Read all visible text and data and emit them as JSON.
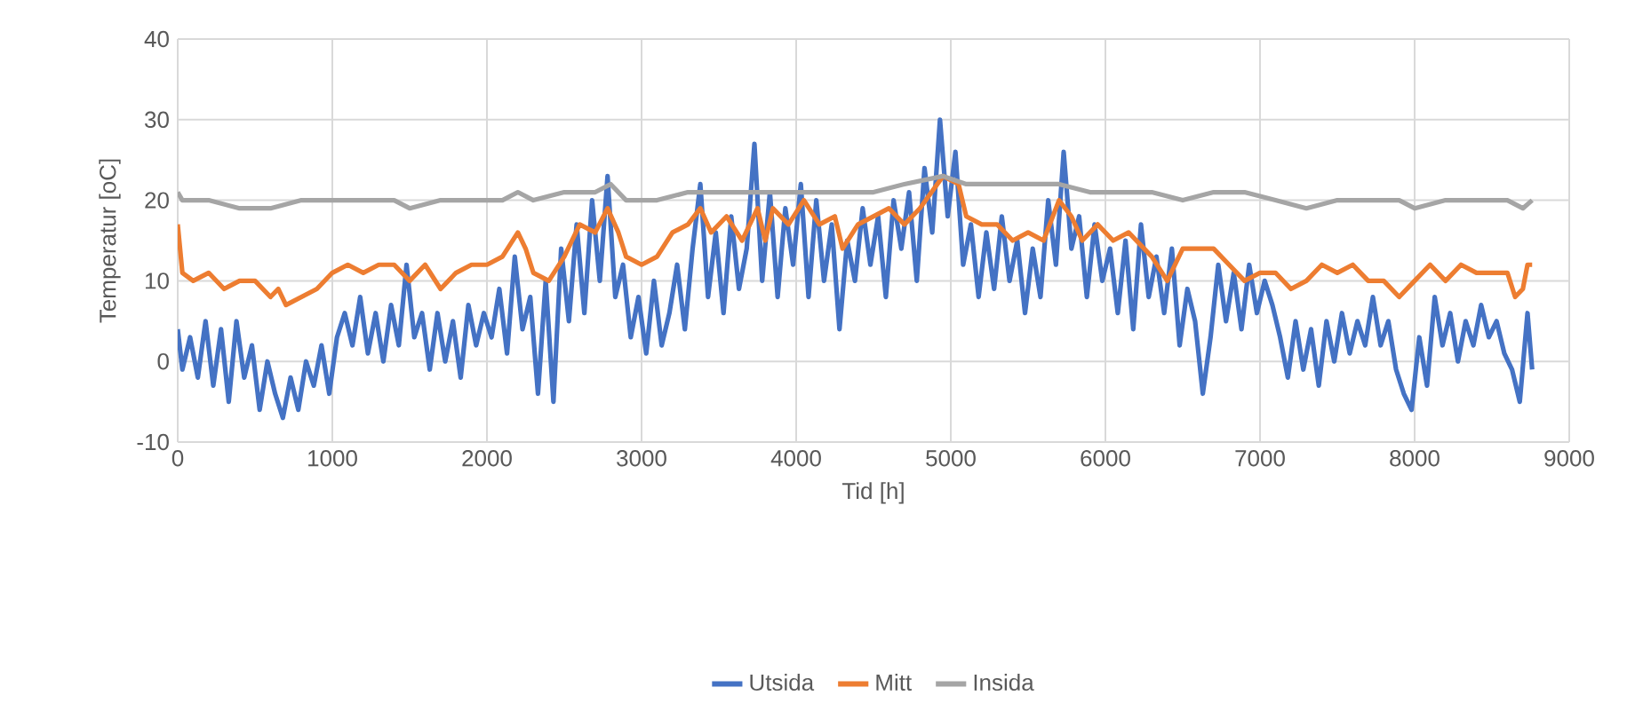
{
  "chart_data": {
    "type": "line",
    "xlabel": "Tid [h]",
    "ylabel": "Temperatur [oC]",
    "xlim": [
      0,
      9000
    ],
    "ylim": [
      -10,
      40
    ],
    "xticks": [
      0,
      1000,
      2000,
      3000,
      4000,
      5000,
      6000,
      7000,
      8000,
      9000
    ],
    "yticks": [
      -10,
      0,
      10,
      20,
      30,
      40
    ],
    "grid": true,
    "legend": "bottom",
    "marker": "none",
    "line_style": "solid",
    "series": [
      {
        "name": "Utsida",
        "color": "#4472c4",
        "x": [
          0,
          30,
          80,
          130,
          180,
          230,
          280,
          330,
          380,
          430,
          480,
          530,
          580,
          630,
          680,
          730,
          780,
          830,
          880,
          930,
          980,
          1030,
          1080,
          1130,
          1180,
          1230,
          1280,
          1330,
          1380,
          1430,
          1480,
          1530,
          1580,
          1630,
          1680,
          1730,
          1780,
          1830,
          1880,
          1930,
          1980,
          2030,
          2080,
          2130,
          2180,
          2230,
          2280,
          2330,
          2380,
          2430,
          2480,
          2530,
          2580,
          2630,
          2680,
          2730,
          2780,
          2830,
          2880,
          2930,
          2980,
          3030,
          3080,
          3130,
          3180,
          3230,
          3280,
          3330,
          3380,
          3430,
          3480,
          3530,
          3580,
          3630,
          3680,
          3730,
          3780,
          3830,
          3880,
          3930,
          3980,
          4030,
          4080,
          4130,
          4180,
          4230,
          4280,
          4330,
          4380,
          4430,
          4480,
          4530,
          4580,
          4630,
          4680,
          4730,
          4780,
          4830,
          4880,
          4930,
          4980,
          5030,
          5080,
          5130,
          5180,
          5230,
          5280,
          5330,
          5380,
          5430,
          5480,
          5530,
          5580,
          5630,
          5680,
          5730,
          5780,
          5830,
          5880,
          5930,
          5980,
          6030,
          6080,
          6130,
          6180,
          6230,
          6280,
          6330,
          6380,
          6430,
          6480,
          6530,
          6580,
          6630,
          6680,
          6730,
          6780,
          6830,
          6880,
          6930,
          6980,
          7030,
          7080,
          7130,
          7180,
          7230,
          7280,
          7330,
          7380,
          7430,
          7480,
          7530,
          7580,
          7630,
          7680,
          7730,
          7780,
          7830,
          7880,
          7930,
          7980,
          8030,
          8080,
          8130,
          8180,
          8230,
          8280,
          8330,
          8380,
          8430,
          8480,
          8530,
          8580,
          8630,
          8680,
          8730,
          8760
        ],
        "values": [
          4,
          -1,
          3,
          -2,
          5,
          -3,
          4,
          -5,
          5,
          -2,
          2,
          -6,
          0,
          -4,
          -7,
          -2,
          -6,
          0,
          -3,
          2,
          -4,
          3,
          6,
          2,
          8,
          1,
          6,
          0,
          7,
          2,
          12,
          3,
          6,
          -1,
          6,
          0,
          5,
          -2,
          7,
          2,
          6,
          3,
          9,
          1,
          13,
          4,
          8,
          -4,
          10,
          -5,
          14,
          5,
          17,
          6,
          20,
          10,
          23,
          8,
          12,
          3,
          8,
          1,
          10,
          2,
          6,
          12,
          4,
          14,
          22,
          8,
          16,
          6,
          18,
          9,
          14,
          27,
          10,
          21,
          8,
          19,
          12,
          22,
          8,
          20,
          10,
          17,
          4,
          15,
          10,
          19,
          12,
          18,
          8,
          20,
          14,
          21,
          10,
          24,
          16,
          30,
          18,
          26,
          12,
          17,
          8,
          16,
          9,
          18,
          10,
          15,
          6,
          14,
          8,
          20,
          12,
          26,
          14,
          18,
          8,
          17,
          10,
          14,
          6,
          15,
          4,
          17,
          8,
          13,
          6,
          14,
          2,
          9,
          5,
          -4,
          3,
          12,
          5,
          11,
          4,
          12,
          6,
          10,
          7,
          3,
          -2,
          5,
          -1,
          4,
          -3,
          5,
          0,
          6,
          1,
          5,
          2,
          8,
          2,
          5,
          -1,
          -4,
          -6,
          3,
          -3,
          8,
          2,
          6,
          0,
          5,
          2,
          7,
          3,
          5,
          1,
          -1,
          -5,
          6,
          -1
        ]
      },
      {
        "name": "Mitt",
        "color": "#ed7d31",
        "x": [
          0,
          30,
          100,
          200,
          300,
          400,
          500,
          600,
          650,
          700,
          800,
          900,
          1000,
          1100,
          1200,
          1300,
          1400,
          1500,
          1600,
          1700,
          1800,
          1900,
          2000,
          2100,
          2200,
          2250,
          2300,
          2400,
          2500,
          2600,
          2700,
          2780,
          2850,
          2900,
          3000,
          3100,
          3200,
          3300,
          3380,
          3450,
          3550,
          3650,
          3750,
          3800,
          3850,
          3950,
          4050,
          4150,
          4250,
          4300,
          4400,
          4500,
          4600,
          4700,
          4800,
          4950,
          5050,
          5100,
          5200,
          5300,
          5400,
          5500,
          5600,
          5700,
          5780,
          5850,
          5950,
          6050,
          6150,
          6300,
          6400,
          6500,
          6600,
          6700,
          6800,
          6900,
          7000,
          7100,
          7200,
          7300,
          7400,
          7500,
          7600,
          7700,
          7800,
          7900,
          8000,
          8100,
          8200,
          8300,
          8400,
          8500,
          8600,
          8650,
          8700,
          8730,
          8760
        ],
        "values": [
          17,
          11,
          10,
          11,
          9,
          10,
          10,
          8,
          9,
          7,
          8,
          9,
          11,
          12,
          11,
          12,
          12,
          10,
          12,
          9,
          11,
          12,
          12,
          13,
          16,
          14,
          11,
          10,
          13,
          17,
          16,
          19,
          16,
          13,
          12,
          13,
          16,
          17,
          19,
          16,
          18,
          15,
          19,
          15,
          19,
          17,
          20,
          17,
          18,
          14,
          17,
          18,
          19,
          17,
          19,
          23,
          22,
          18,
          17,
          17,
          15,
          16,
          15,
          20,
          18,
          15,
          17,
          15,
          16,
          13,
          10,
          14,
          14,
          14,
          12,
          10,
          11,
          11,
          9,
          10,
          12,
          11,
          12,
          10,
          10,
          8,
          10,
          12,
          10,
          12,
          11,
          11,
          11,
          8,
          9,
          12,
          12
        ]
      },
      {
        "name": "Insida",
        "color": "#a5a5a5",
        "x": [
          0,
          30,
          200,
          400,
          600,
          800,
          1000,
          1200,
          1400,
          1500,
          1700,
          1900,
          2100,
          2200,
          2300,
          2500,
          2700,
          2800,
          2900,
          3100,
          3300,
          3500,
          3700,
          3900,
          4100,
          4300,
          4500,
          4700,
          4950,
          5100,
          5300,
          5500,
          5700,
          5900,
          6100,
          6300,
          6500,
          6700,
          6900,
          7100,
          7300,
          7500,
          7700,
          7900,
          8000,
          8200,
          8400,
          8600,
          8700,
          8760
        ],
        "values": [
          21,
          20,
          20,
          19,
          19,
          20,
          20,
          20,
          20,
          19,
          20,
          20,
          20,
          21,
          20,
          21,
          21,
          22,
          20,
          20,
          21,
          21,
          21,
          21,
          21,
          21,
          21,
          22,
          23,
          22,
          22,
          22,
          22,
          21,
          21,
          21,
          20,
          21,
          21,
          20,
          19,
          20,
          20,
          20,
          19,
          20,
          20,
          20,
          19,
          20
        ]
      }
    ]
  }
}
